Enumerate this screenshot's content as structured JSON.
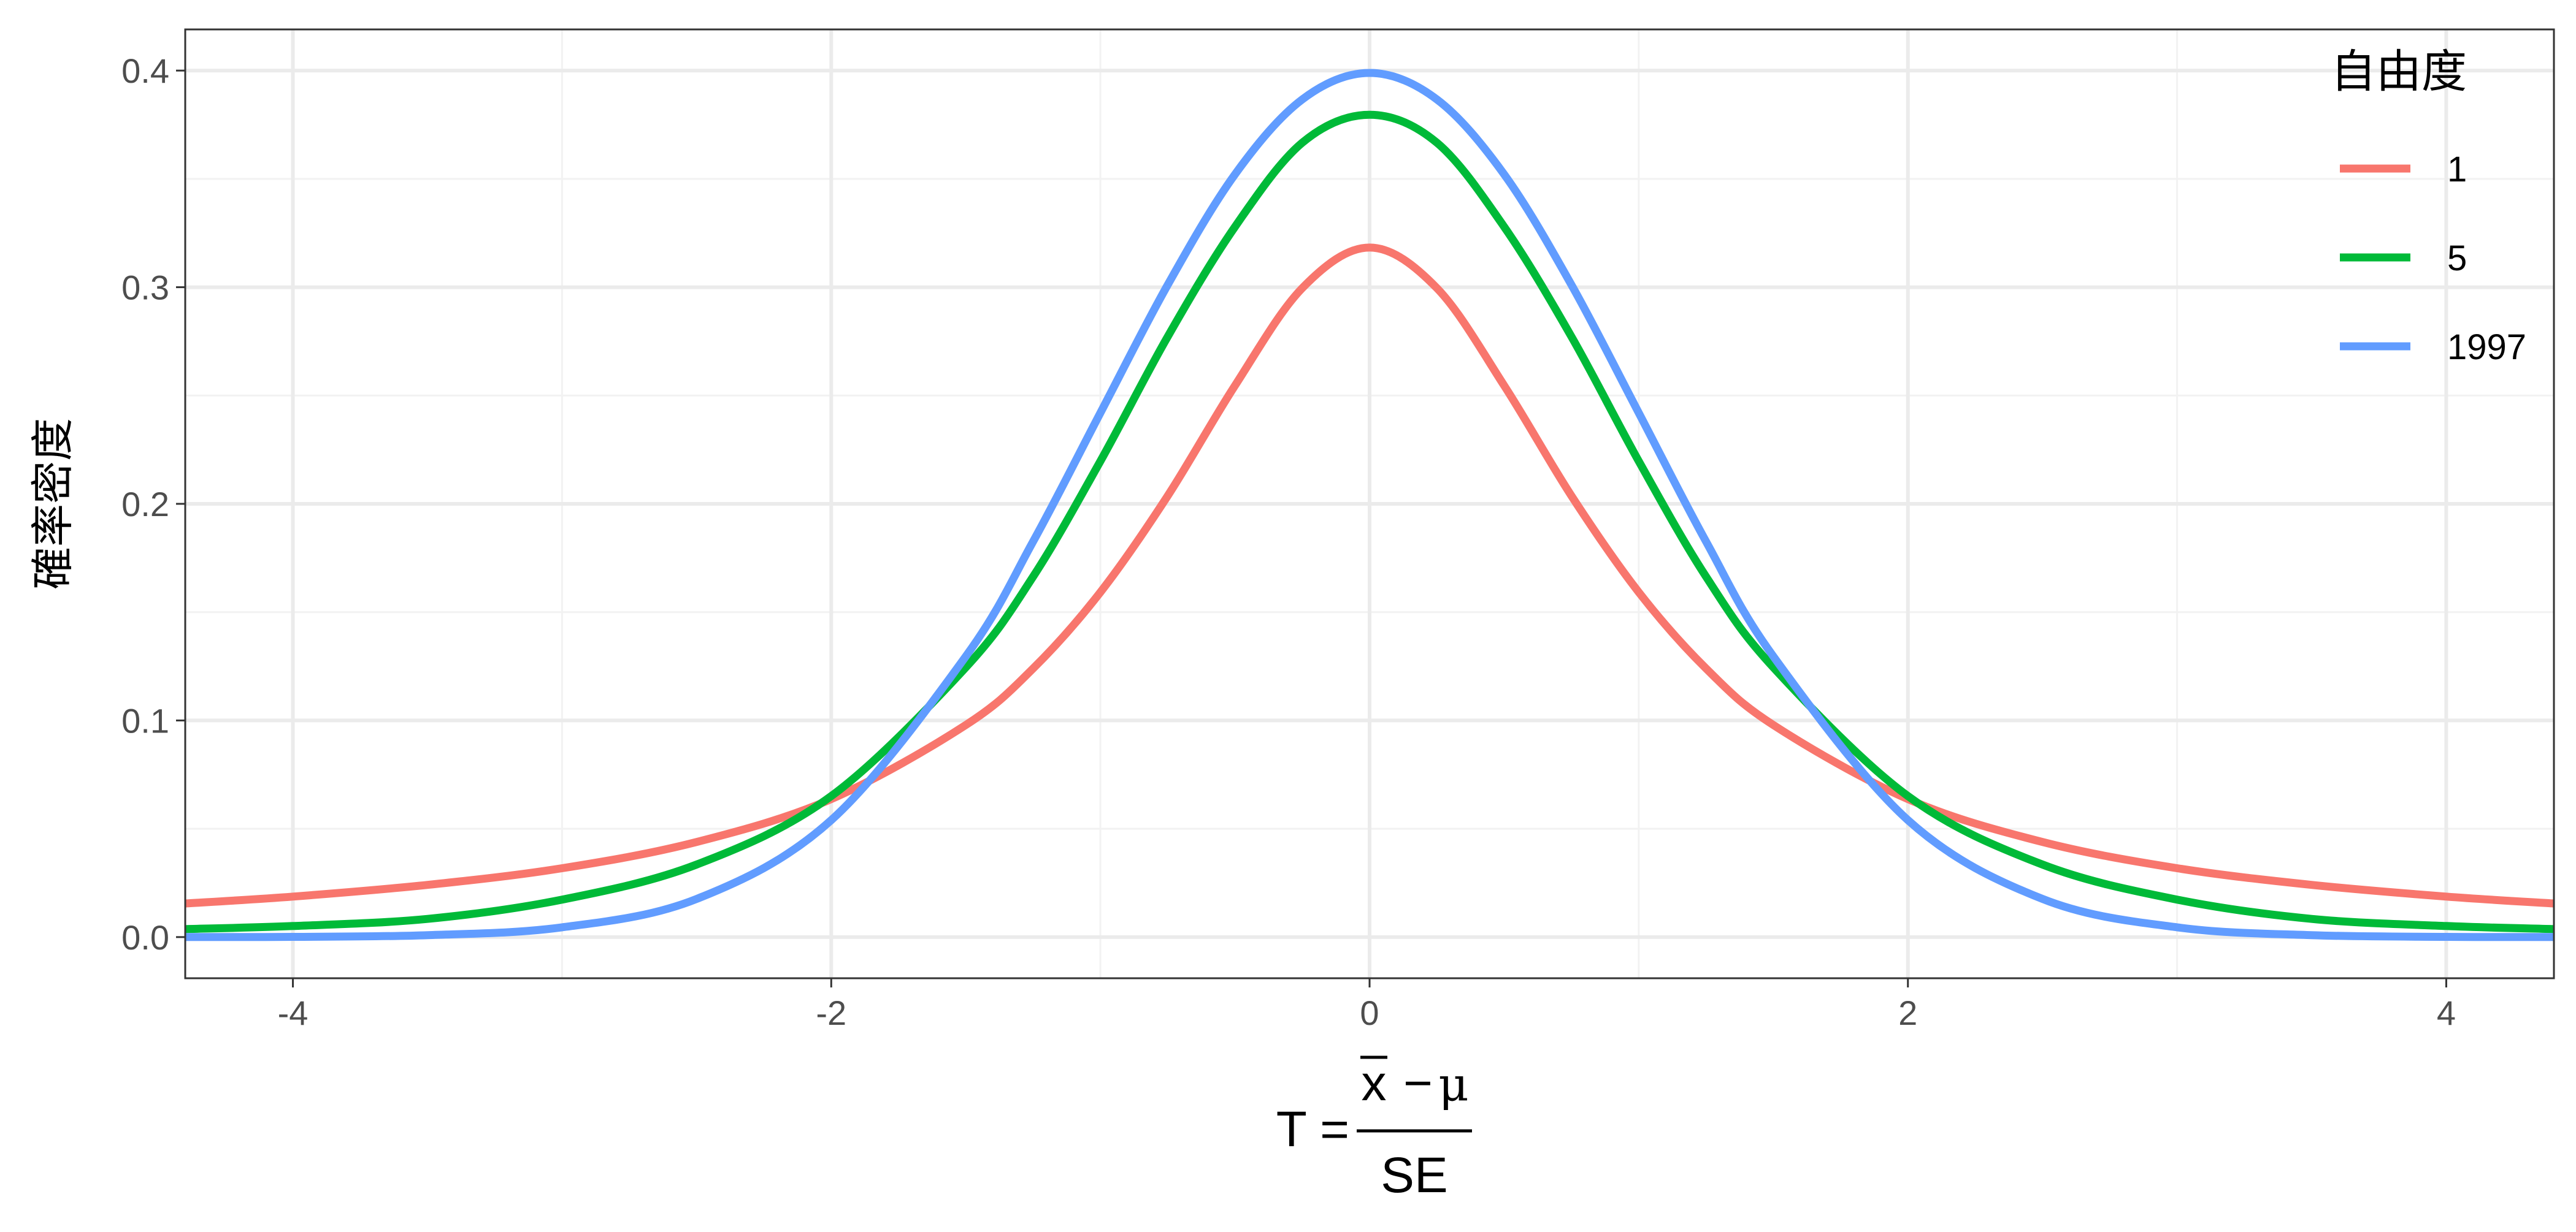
{
  "chart_data": {
    "type": "line",
    "title": "",
    "xlabel_formula": {
      "lhs": "T =",
      "numerator_var": "x",
      "numerator_op": "−",
      "numerator_mu": "μ",
      "denominator": "SE"
    },
    "ylabel": "確率密度",
    "xlim": [
      -4.4,
      4.4
    ],
    "ylim": [
      -0.019,
      0.419
    ],
    "x_ticks": [
      {
        "value": -4,
        "label": "-4"
      },
      {
        "value": -2,
        "label": "-2"
      },
      {
        "value": 0,
        "label": "0"
      },
      {
        "value": 2,
        "label": "2"
      },
      {
        "value": 4,
        "label": "4"
      }
    ],
    "y_ticks": [
      {
        "value": 0.0,
        "label": "0.0"
      },
      {
        "value": 0.1,
        "label": "0.1"
      },
      {
        "value": 0.2,
        "label": "0.2"
      },
      {
        "value": 0.3,
        "label": "0.3"
      },
      {
        "value": 0.4,
        "label": "0.4"
      }
    ],
    "grid": true,
    "legend": {
      "title": "自由度",
      "placement": "top-right",
      "entries": [
        "1",
        "5",
        "1997"
      ]
    },
    "series": [
      {
        "name": "1",
        "color": "#F8766D",
        "x": [
          -4.4,
          -4.0,
          -3.5,
          -3.0,
          -2.5,
          -2.0,
          -1.5,
          -1.25,
          -1.0,
          -0.75,
          -0.5,
          -0.25,
          0.0,
          0.25,
          0.5,
          0.75,
          1.0,
          1.25,
          1.5,
          2.0,
          2.5,
          3.0,
          3.5,
          4.0,
          4.4
        ],
        "y": [
          0.0155,
          0.0187,
          0.0241,
          0.0318,
          0.0439,
          0.0637,
          0.0979,
          0.124,
          0.1592,
          0.2037,
          0.2546,
          0.2996,
          0.3183,
          0.2996,
          0.2546,
          0.2037,
          0.1592,
          0.124,
          0.0979,
          0.0637,
          0.0439,
          0.0318,
          0.0241,
          0.0187,
          0.0155
        ]
      },
      {
        "name": "5",
        "color": "#00BA38",
        "x": [
          -4.4,
          -4.0,
          -3.5,
          -3.0,
          -2.5,
          -2.0,
          -1.5,
          -1.25,
          -1.0,
          -0.75,
          -0.5,
          -0.25,
          0.0,
          0.25,
          0.5,
          0.75,
          1.0,
          1.25,
          1.5,
          2.0,
          2.5,
          3.0,
          3.5,
          4.0,
          4.4
        ],
        "y": [
          0.0037,
          0.0051,
          0.0084,
          0.0173,
          0.0335,
          0.0651,
          0.1245,
          0.1664,
          0.2197,
          0.2772,
          0.3279,
          0.3667,
          0.3796,
          0.3667,
          0.3279,
          0.2772,
          0.2197,
          0.1664,
          0.1245,
          0.0651,
          0.0335,
          0.0173,
          0.0084,
          0.0051,
          0.0037
        ]
      },
      {
        "name": "1997",
        "color": "#619CFF",
        "x": [
          -4.4,
          -4.0,
          -3.5,
          -3.0,
          -2.5,
          -2.0,
          -1.5,
          -1.25,
          -1.0,
          -0.75,
          -0.5,
          -0.25,
          0.0,
          0.25,
          0.5,
          0.75,
          1.0,
          1.25,
          1.5,
          2.0,
          2.5,
          3.0,
          3.5,
          4.0,
          4.4
        ],
        "y": [
          3e-05,
          0.0001,
          0.0009,
          0.0045,
          0.0176,
          0.054,
          0.1296,
          0.1826,
          0.242,
          0.3011,
          0.3521,
          0.3867,
          0.3989,
          0.3867,
          0.3521,
          0.3011,
          0.242,
          0.1826,
          0.1296,
          0.054,
          0.0176,
          0.0045,
          0.0009,
          0.0001,
          3e-05
        ]
      }
    ]
  }
}
